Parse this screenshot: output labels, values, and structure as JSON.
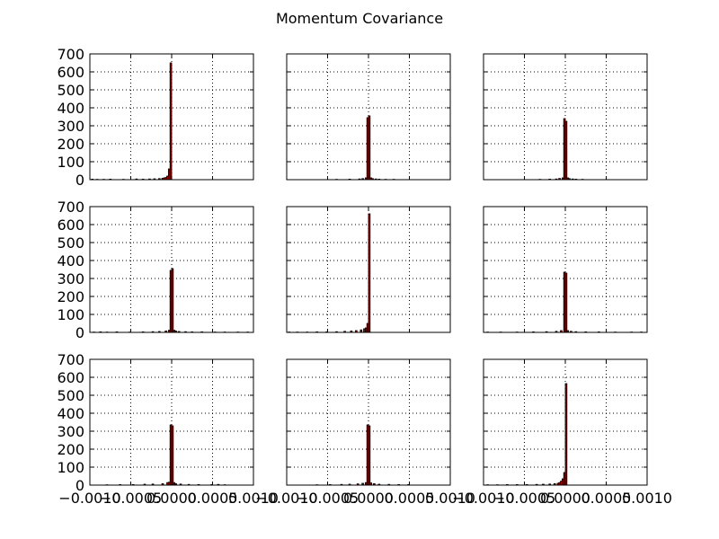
{
  "chart_data": {
    "type": "bar",
    "title": "Momentum Covariance",
    "layout": "3x3 grid of histograms, shared axes",
    "colors": {
      "bar_fill": "#a80000",
      "bar_edge": "#000000"
    },
    "grid": true,
    "xlim": [
      -0.001,
      0.001
    ],
    "ylim": [
      0,
      700
    ],
    "y_ticks": [
      0,
      100,
      200,
      300,
      400,
      500,
      600,
      700
    ],
    "y_tick_labels": [
      "0",
      "100",
      "200",
      "300",
      "400",
      "500",
      "600",
      "700"
    ],
    "x_ticks": [
      -0.001,
      -0.0005,
      0.0,
      0.0005,
      0.001
    ],
    "x_tick_labels": [
      "−0.0010",
      "−0.0005",
      "0.0000",
      "0.0005",
      "0.0010"
    ],
    "bin_width": 2e-05,
    "panels": [
      {
        "name": "row 1, col 1",
        "bins": [
          [
            -0.00098,
            3
          ],
          [
            -0.00092,
            2
          ],
          [
            -0.00084,
            2
          ],
          [
            -0.00076,
            3
          ],
          [
            -0.0006,
            2
          ],
          [
            -0.00044,
            4
          ],
          [
            -0.00036,
            3
          ],
          [
            -0.00028,
            4
          ],
          [
            -0.00022,
            5
          ],
          [
            -0.00016,
            6
          ],
          [
            -0.00012,
            8
          ],
          [
            -0.0001,
            10
          ],
          [
            -8e-05,
            12
          ],
          [
            -6e-05,
            20
          ],
          [
            -4e-05,
            60
          ],
          [
            -2e-05,
            650
          ]
        ]
      },
      {
        "name": "row 1, col 2",
        "bins": [
          [
            -0.0004,
            2
          ],
          [
            -0.00024,
            3
          ],
          [
            -0.00012,
            4
          ],
          [
            -8e-05,
            6
          ],
          [
            -4e-05,
            10
          ],
          [
            -2e-05,
            345
          ],
          [
            0.0,
            355
          ],
          [
            2e-05,
            10
          ],
          [
            4e-05,
            6
          ],
          [
            8e-05,
            4
          ],
          [
            0.00012,
            3
          ],
          [
            0.0002,
            2
          ],
          [
            0.0003,
            2
          ]
        ]
      },
      {
        "name": "row 1, col 3",
        "bins": [
          [
            -0.00032,
            2
          ],
          [
            -0.0002,
            3
          ],
          [
            -0.00012,
            4
          ],
          [
            -8e-05,
            7
          ],
          [
            -4e-05,
            10
          ],
          [
            -2e-05,
            340
          ],
          [
            0.0,
            325
          ],
          [
            2e-05,
            10
          ],
          [
            4e-05,
            6
          ],
          [
            8e-05,
            4
          ],
          [
            0.00012,
            3
          ],
          [
            0.0002,
            2
          ]
        ]
      },
      {
        "name": "row 2, col 1",
        "bins": [
          [
            -0.00096,
            2
          ],
          [
            -0.00088,
            3
          ],
          [
            -0.0008,
            2
          ],
          [
            -0.00068,
            3
          ],
          [
            -0.00052,
            2
          ],
          [
            -0.00036,
            3
          ],
          [
            -0.00024,
            4
          ],
          [
            -0.00016,
            5
          ],
          [
            -8e-05,
            8
          ],
          [
            -4e-05,
            12
          ],
          [
            -2e-05,
            345
          ],
          [
            0.0,
            355
          ],
          [
            2e-05,
            12
          ],
          [
            4e-05,
            8
          ],
          [
            8e-05,
            5
          ],
          [
            0.00016,
            4
          ],
          [
            0.00024,
            3
          ],
          [
            0.00036,
            3
          ],
          [
            0.00052,
            2
          ],
          [
            0.00064,
            2
          ],
          [
            0.0008,
            2
          ],
          [
            0.00092,
            2
          ]
        ]
      },
      {
        "name": "row 2, col 2",
        "bins": [
          [
            -0.00098,
            2
          ],
          [
            -0.00088,
            2
          ],
          [
            -0.00076,
            2
          ],
          [
            -0.00064,
            3
          ],
          [
            -0.00052,
            3
          ],
          [
            -0.0004,
            4
          ],
          [
            -0.0003,
            6
          ],
          [
            -0.00022,
            8
          ],
          [
            -0.00016,
            10
          ],
          [
            -0.0001,
            14
          ],
          [
            -6e-05,
            20
          ],
          [
            -4e-05,
            25
          ],
          [
            -2e-05,
            50
          ],
          [
            0.0,
            660
          ]
        ]
      },
      {
        "name": "row 2, col 3",
        "bins": [
          [
            -0.00096,
            2
          ],
          [
            -0.0008,
            2
          ],
          [
            -0.0006,
            2
          ],
          [
            -0.0004,
            3
          ],
          [
            -0.00024,
            4
          ],
          [
            -0.00012,
            6
          ],
          [
            -6e-05,
            10
          ],
          [
            -2e-05,
            335
          ],
          [
            0.0,
            330
          ],
          [
            2e-05,
            10
          ],
          [
            6e-05,
            6
          ],
          [
            0.00012,
            4
          ],
          [
            0.00024,
            3
          ],
          [
            0.0004,
            3
          ],
          [
            0.0006,
            2
          ],
          [
            0.0008,
            2
          ],
          [
            0.00092,
            2
          ]
        ]
      },
      {
        "name": "row 3, col 1",
        "bins": [
          [
            -0.0008,
            2
          ],
          [
            -0.00064,
            3
          ],
          [
            -0.00048,
            3
          ],
          [
            -0.00034,
            5
          ],
          [
            -0.00024,
            6
          ],
          [
            -0.00012,
            8
          ],
          [
            -6e-05,
            14
          ],
          [
            -4e-05,
            16
          ],
          [
            -2e-05,
            335
          ],
          [
            0.0,
            330
          ],
          [
            2e-05,
            14
          ],
          [
            4e-05,
            8
          ],
          [
            0.0001,
            6
          ],
          [
            0.0002,
            4
          ],
          [
            0.00032,
            3
          ],
          [
            0.00048,
            3
          ],
          [
            0.00056,
            4
          ],
          [
            0.00064,
            2
          ]
        ]
      },
      {
        "name": "row 3, col 2",
        "bins": [
          [
            -0.00064,
            2
          ],
          [
            -0.00048,
            3
          ],
          [
            -0.00034,
            4
          ],
          [
            -0.00024,
            5
          ],
          [
            -0.00014,
            7
          ],
          [
            -8e-05,
            10
          ],
          [
            -4e-05,
            14
          ],
          [
            -2e-05,
            335
          ],
          [
            0.0,
            330
          ],
          [
            2e-05,
            12
          ],
          [
            6e-05,
            8
          ],
          [
            0.00012,
            5
          ],
          [
            0.00024,
            4
          ],
          [
            0.00036,
            3
          ],
          [
            0.00048,
            3
          ]
        ]
      },
      {
        "name": "row 3, col 3",
        "bins": [
          [
            -0.00096,
            2
          ],
          [
            -0.00084,
            2
          ],
          [
            -0.00072,
            3
          ],
          [
            -0.0006,
            3
          ],
          [
            -0.00048,
            3
          ],
          [
            -0.00036,
            4
          ],
          [
            -0.00028,
            5
          ],
          [
            -0.0002,
            6
          ],
          [
            -0.00014,
            8
          ],
          [
            -0.0001,
            10
          ],
          [
            -8e-05,
            14
          ],
          [
            -6e-05,
            22
          ],
          [
            -4e-05,
            35
          ],
          [
            -2e-05,
            70
          ],
          [
            0.0,
            565
          ]
        ]
      }
    ]
  }
}
